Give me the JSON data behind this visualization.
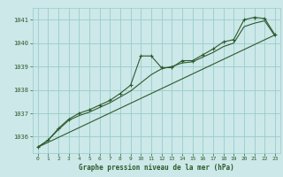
{
  "title": "Graphe pression niveau de la mer (hPa)",
  "bg_color": "#cce8e8",
  "grid_color": "#99cccc",
  "line_color": "#2d5a2d",
  "ylim": [
    1035.3,
    1041.5
  ],
  "xlim": [
    -0.5,
    23.5
  ],
  "yticks": [
    1036,
    1037,
    1038,
    1039,
    1040,
    1041
  ],
  "xticks": [
    0,
    1,
    2,
    3,
    4,
    5,
    6,
    7,
    8,
    9,
    10,
    11,
    12,
    13,
    14,
    15,
    16,
    17,
    18,
    19,
    20,
    21,
    22,
    23
  ],
  "series1_x": [
    0,
    1,
    2,
    3,
    4,
    5,
    6,
    7,
    8,
    9,
    10,
    11,
    12,
    13,
    14,
    15,
    16,
    17,
    18,
    19,
    20,
    21,
    22,
    23
  ],
  "series1_y": [
    1035.55,
    1035.85,
    1036.35,
    1036.75,
    1037.0,
    1037.15,
    1037.35,
    1037.55,
    1037.85,
    1038.2,
    1039.45,
    1039.45,
    1038.95,
    1038.95,
    1039.25,
    1039.25,
    1039.5,
    1039.75,
    1040.05,
    1040.15,
    1041.0,
    1041.1,
    1041.05,
    1040.35
  ],
  "series2_x": [
    0,
    1,
    2,
    3,
    4,
    5,
    6,
    7,
    8,
    9,
    10,
    11,
    12,
    13,
    14,
    15,
    16,
    17,
    18,
    19,
    20,
    21,
    22,
    23
  ],
  "series2_y": [
    1035.55,
    1035.85,
    1036.3,
    1036.7,
    1036.9,
    1037.05,
    1037.25,
    1037.45,
    1037.7,
    1037.95,
    1038.3,
    1038.65,
    1038.9,
    1039.0,
    1039.15,
    1039.2,
    1039.4,
    1039.6,
    1039.85,
    1040.0,
    1040.7,
    1040.85,
    1040.95,
    1040.3
  ],
  "series3_x": [
    0,
    23
  ],
  "series3_y": [
    1035.55,
    1040.35
  ]
}
